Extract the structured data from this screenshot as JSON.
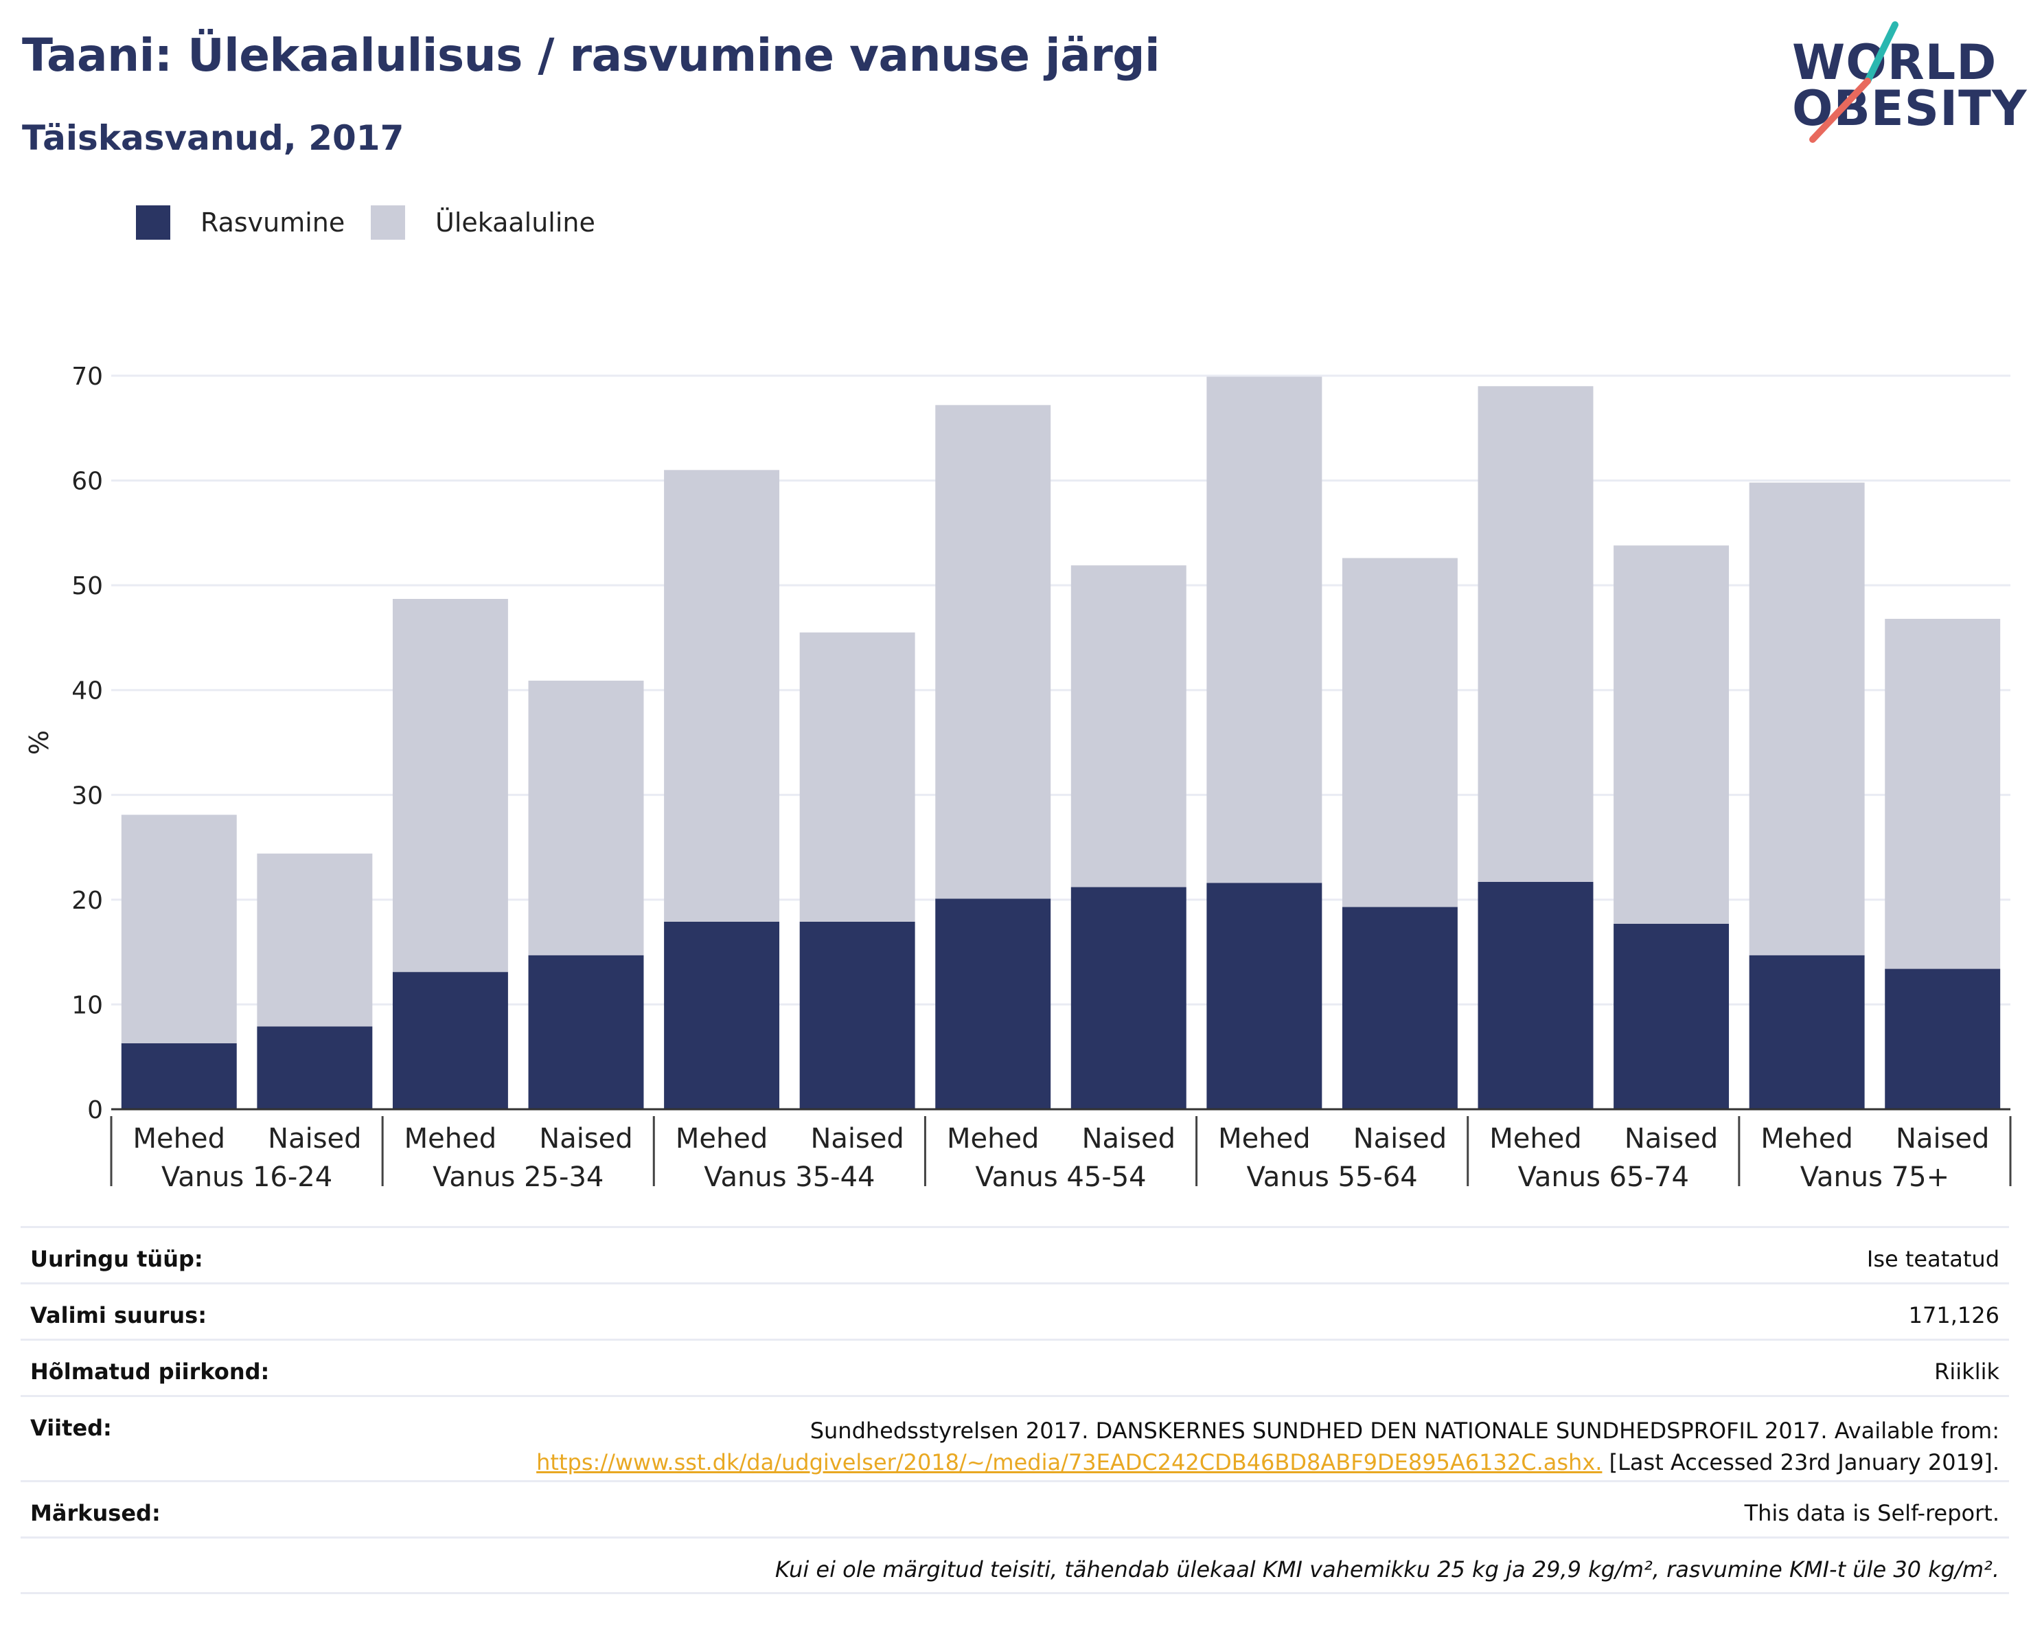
{
  "header": {
    "title": "Taani: Ülekaalulisus / rasvumine vanuse järgi",
    "subtitle": "Täiskasvanud, 2017"
  },
  "logo": {
    "line1": "WORLD",
    "line2": "OBESITY",
    "accent_colors": [
      "#2ab7b0",
      "#e8695d"
    ]
  },
  "colors": {
    "obesity": "#2a3563",
    "overweight": "#cbcdd9",
    "title": "#2a3563",
    "link": "#e9a822"
  },
  "chart_data": {
    "type": "bar",
    "stacked": true,
    "ylabel": "%",
    "ylim": [
      0,
      70
    ],
    "yticks": [
      0,
      10,
      20,
      30,
      40,
      50,
      60,
      70
    ],
    "grid": true,
    "legend_position": "top-left",
    "groups": [
      "Vanus 16-24",
      "Vanus 25-34",
      "Vanus 35-44",
      "Vanus 45-54",
      "Vanus 55-64",
      "Vanus 65-74",
      "Vanus 75+"
    ],
    "subcategories": [
      "Mehed",
      "Naised"
    ],
    "series": [
      {
        "name": "Rasvumine",
        "values": [
          6.3,
          7.9,
          13.1,
          14.7,
          17.9,
          17.9,
          20.1,
          21.2,
          21.6,
          19.3,
          21.7,
          17.7,
          14.7,
          13.4
        ]
      },
      {
        "name": "Ülekaaluline",
        "values": [
          21.8,
          16.5,
          35.6,
          26.2,
          43.1,
          27.6,
          47.1,
          30.7,
          48.3,
          33.3,
          47.3,
          36.1,
          45.1,
          33.4
        ]
      }
    ]
  },
  "info": {
    "rows": [
      {
        "label": "Uuringu tüüp:",
        "value": "Ise teatatud"
      },
      {
        "label": "Valimi suurus:",
        "value": "171,126"
      },
      {
        "label": "Hõlmatud piirkond:",
        "value": "Riiklik"
      }
    ],
    "references": {
      "label": "Viited:",
      "line1": "Sundhedsstyrelsen 2017. DANSKERNES SUNDHED DEN NATIONALE SUNDHEDSPROFIL 2017. Available from:",
      "link": "https://www.sst.dk/da/udgivelser/2018/~/media/73EADC242CDB46BD8ABF9DE895A6132C.ashx.",
      "after_link": " [Last Accessed 23rd January 2019]."
    },
    "notes": {
      "label": "Märkused:",
      "value": "This data is Self-report."
    },
    "footnote": "Kui ei ole märgitud teisiti, tähendab ülekaal KMI vahemikku 25 kg ja 29,9 kg/m², rasvumine KMI-t üle 30 kg/m²."
  }
}
